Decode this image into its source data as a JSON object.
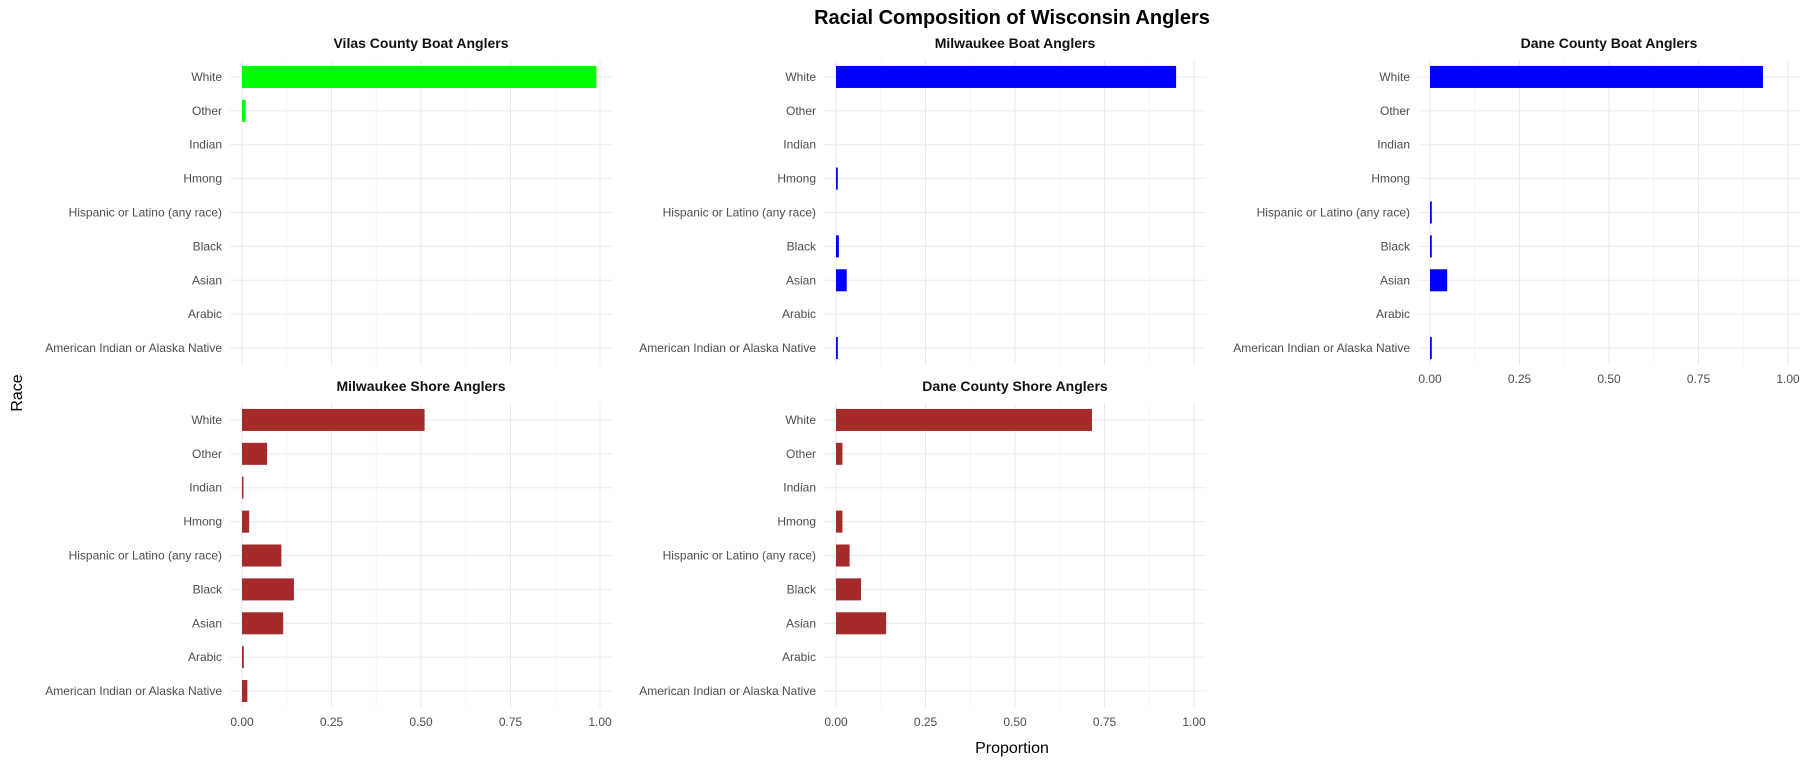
{
  "chart_data": {
    "type": "bar",
    "orientation": "horizontal",
    "title": "Racial Composition of Wisconsin Anglers",
    "xlabel": "Proportion",
    "ylabel": "Race",
    "xlim": [
      0,
      1
    ],
    "xticks": [
      "0.00",
      "0.25",
      "0.50",
      "0.75",
      "1.00"
    ],
    "xtick_values": [
      0,
      0.25,
      0.5,
      0.75,
      1.0
    ],
    "grid": true,
    "categories": [
      "White",
      "Other",
      "Indian",
      "Hmong",
      "Hispanic or Latino (any race)",
      "Black",
      "Asian",
      "Arabic",
      "American Indian or Alaska Native"
    ],
    "panels": [
      {
        "title": "Vilas County Boat Anglers",
        "color": "#00ff00",
        "values": [
          0.99,
          0.01,
          0,
          0,
          0,
          0,
          0,
          0,
          0
        ]
      },
      {
        "title": "Milwaukee Boat Anglers",
        "color": "#0000ff",
        "values": [
          0.95,
          0,
          0,
          0.005,
          0,
          0.008,
          0.03,
          0,
          0.005
        ]
      },
      {
        "title": "Dane County Boat Anglers",
        "color": "#0000ff",
        "values": [
          0.93,
          0,
          0,
          0,
          0.005,
          0.005,
          0.048,
          0,
          0.005
        ]
      },
      {
        "title": "Milwaukee Shore Anglers",
        "color": "#a52a2a",
        "values": [
          0.51,
          0.07,
          0.003,
          0.02,
          0.11,
          0.145,
          0.115,
          0.005,
          0.015
        ]
      },
      {
        "title": "Dane County Shore Anglers",
        "color": "#a52a2a",
        "values": [
          0.715,
          0.018,
          0,
          0.018,
          0.038,
          0.07,
          0.14,
          0,
          0
        ]
      }
    ]
  }
}
